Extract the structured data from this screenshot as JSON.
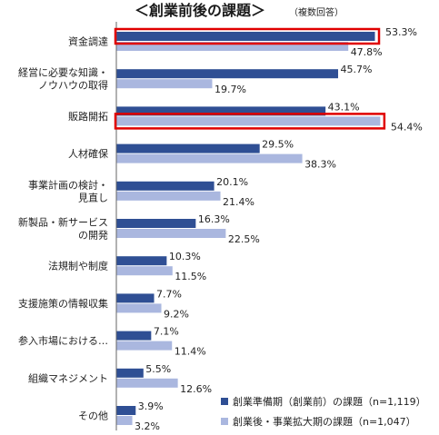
{
  "colors": {
    "series_pre": "#2f4f94",
    "series_post": "#aab7df",
    "highlight": "#e00000",
    "axis": "#666666"
  },
  "chart_data": {
    "type": "bar",
    "orientation": "horizontal",
    "title": "＜創業前後の課題＞",
    "subtitle": "（複数回答）",
    "categories": [
      [
        "資金調達"
      ],
      [
        "経営に必要な知識・",
        "ノウハウの取得"
      ],
      [
        "販路開拓"
      ],
      [
        "人材確保"
      ],
      [
        "事業計画の検討・",
        "見直し"
      ],
      [
        "新製品・新サービス",
        "の開発"
      ],
      [
        "法規制や制度"
      ],
      [
        "支援施策の情報収集"
      ],
      [
        "参入市場における…"
      ],
      [
        "組織マネジメント"
      ],
      [
        "その他"
      ]
    ],
    "series": [
      {
        "name": "創業準備期（創業前）の課題（n=1,119）",
        "values": [
          53.3,
          45.7,
          43.1,
          29.5,
          20.1,
          16.3,
          10.3,
          7.7,
          7.1,
          5.5,
          3.9
        ],
        "labels": [
          "53.3%",
          "45.7%",
          "43.1%",
          "29.5%",
          "20.1%",
          "16.3%",
          "10.3%",
          "7.7%",
          "7.1%",
          "5.5%",
          "3.9%"
        ]
      },
      {
        "name": "創業後・事業拡大期の課題（n=1,047）",
        "values": [
          47.8,
          19.7,
          54.4,
          38.3,
          21.4,
          22.5,
          11.5,
          9.2,
          11.4,
          12.6,
          3.2
        ],
        "labels": [
          "47.8%",
          "19.7%",
          "54.4%",
          "38.3%",
          "21.4%",
          "22.5%",
          "11.5%",
          "9.2%",
          "11.4%",
          "12.6%",
          "3.2%"
        ]
      }
    ],
    "highlighted": [
      {
        "category_index": 0,
        "series_index": 0
      },
      {
        "category_index": 2,
        "series_index": 1
      }
    ],
    "xlim": [
      0,
      60
    ],
    "grid": false,
    "legend_position": "bottom-right"
  }
}
